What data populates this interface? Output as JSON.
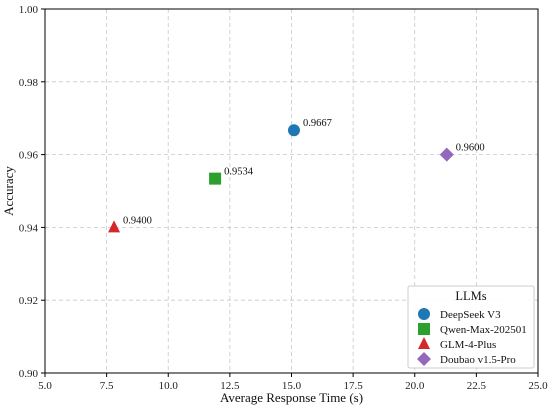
{
  "chart_data": {
    "type": "scatter",
    "title": "",
    "xlabel": "Average Response Time (s)",
    "ylabel": "Accuracy",
    "xlim": [
      5.0,
      25.0
    ],
    "ylim": [
      0.9,
      1.0
    ],
    "xticks": [
      "5.0",
      "7.5",
      "10.0",
      "12.5",
      "15.0",
      "17.5",
      "20.0",
      "22.5",
      "25.0"
    ],
    "yticks": [
      "0.90",
      "0.92",
      "0.94",
      "0.96",
      "0.98",
      "1.00"
    ],
    "grid": true,
    "legend": {
      "title": "LLMs",
      "placement": "lower-right"
    },
    "series": [
      {
        "name": "DeepSeek V3",
        "marker": "circle",
        "color": "#1f77b4",
        "x": 15.1,
        "y": 0.9667,
        "label": "0.9667"
      },
      {
        "name": "Qwen-Max-202501",
        "marker": "square",
        "color": "#2ca02c",
        "x": 11.9,
        "y": 0.9534,
        "label": "0.9534"
      },
      {
        "name": "GLM-4-Plus",
        "marker": "triangle",
        "color": "#d62728",
        "x": 7.8,
        "y": 0.94,
        "label": "0.9400"
      },
      {
        "name": "Doubao v1.5-Pro",
        "marker": "diamond",
        "color": "#9467bd",
        "x": 21.3,
        "y": 0.96,
        "label": "0.9600"
      }
    ]
  }
}
